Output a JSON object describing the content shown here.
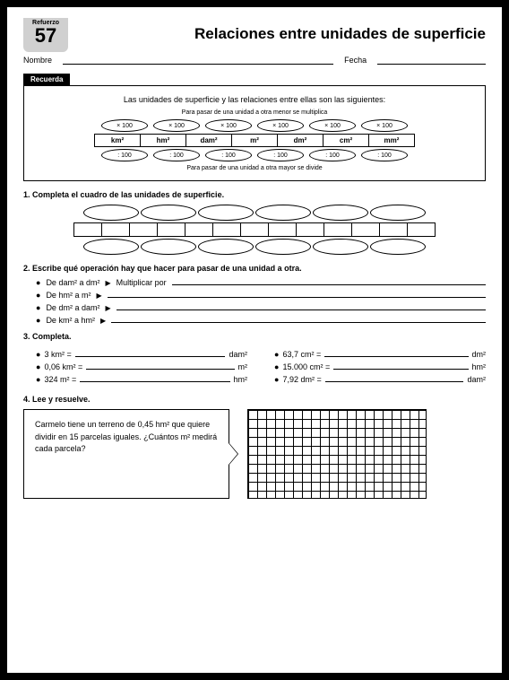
{
  "badge": {
    "label": "Refuerzo",
    "number": "57"
  },
  "title": "Relaciones entre unidades de superficie",
  "nameline": {
    "name_label": "Nombre",
    "date_label": "Fecha"
  },
  "recuerda": {
    "tab": "Recuerda",
    "intro": "Las unidades de superficie y las relaciones entre ellas son las siguientes:",
    "note_top": "Para pasar de una unidad a otra menor se multiplica",
    "note_bottom": "Para pasar de una unidad a otra mayor se divide",
    "mult": "× 100",
    "div": ": 100",
    "units": [
      "km²",
      "hm²",
      "dam²",
      "m²",
      "dm²",
      "cm²",
      "mm²"
    ]
  },
  "q1": {
    "title": "1. Completa el cuadro de las unidades de superficie."
  },
  "q2": {
    "title": "2. Escribe qué operación hay que hacer para pasar de una unidad a otra.",
    "items": [
      {
        "from": "De dam² a dm²",
        "hint": "Multiplicar por"
      },
      {
        "from": "De hm² a m²",
        "hint": ""
      },
      {
        "from": "De dm² a dam²",
        "hint": ""
      },
      {
        "from": "De km² a hm²",
        "hint": ""
      }
    ]
  },
  "q3": {
    "title": "3. Completa.",
    "left": [
      {
        "a": "3 km² =",
        "u": "dam²"
      },
      {
        "a": "0,06 km² =",
        "u": "m²"
      },
      {
        "a": "324 m² =",
        "u": "hm²"
      }
    ],
    "right": [
      {
        "a": "63,7 cm² =",
        "u": "dm²"
      },
      {
        "a": "15.000 cm² =",
        "u": "hm²"
      },
      {
        "a": "7,92 dm² =",
        "u": "dam²"
      }
    ]
  },
  "q4": {
    "title": "4. Lee y resuelve.",
    "problem": "Carmelo tiene un terreno de 0,45 hm² que quiere dividir en 15 parcelas iguales. ¿Cuántos m² medirá cada parcela?"
  },
  "colors": {
    "badge_bg": "#d0d0d0",
    "text": "#000000",
    "bg": "#ffffff"
  }
}
